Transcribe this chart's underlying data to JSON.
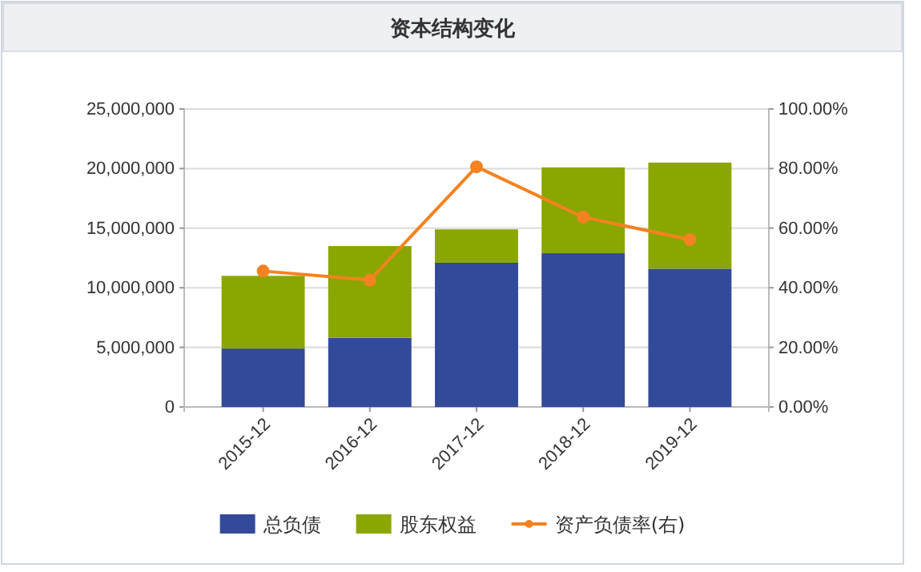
{
  "chart_data": {
    "type": "bar",
    "title": "资本结构变化",
    "stacked": true,
    "categories": [
      "2015-12",
      "2016-12",
      "2017-12",
      "2018-12",
      "2019-12"
    ],
    "series": [
      {
        "name": "总负债",
        "color": "#334a9a",
        "values": [
          4900000,
          5800000,
          12100000,
          12900000,
          11600000
        ]
      },
      {
        "name": "股东权益",
        "color": "#8aa600",
        "values": [
          6100000,
          7700000,
          2800000,
          7200000,
          8900000
        ]
      },
      {
        "name": "资产负债率(右)",
        "type": "line",
        "axis": "y2",
        "color": "#f58220",
        "values": [
          45.6,
          42.6,
          80.6,
          63.7,
          56.2
        ]
      }
    ],
    "ylim": [
      0,
      25000000
    ],
    "yticks": [
      {
        "value": 0,
        "label": "0"
      },
      {
        "value": 5000000,
        "label": "5,000,000"
      },
      {
        "value": 10000000,
        "label": "10,000,000"
      },
      {
        "value": 15000000,
        "label": "15,000,000"
      },
      {
        "value": 20000000,
        "label": "20,000,000"
      },
      {
        "value": 25000000,
        "label": "25,000,000"
      }
    ],
    "y2lim": [
      0,
      100
    ],
    "y2ticks": [
      {
        "value": 0,
        "label": "0.00%"
      },
      {
        "value": 20,
        "label": "20.00%"
      },
      {
        "value": 40,
        "label": "40.00%"
      },
      {
        "value": 60,
        "label": "60.00%"
      },
      {
        "value": 80,
        "label": "80.00%"
      },
      {
        "value": 100,
        "label": "100.00%"
      }
    ],
    "grid": "y",
    "legend": "bottom",
    "marker": "circle"
  }
}
